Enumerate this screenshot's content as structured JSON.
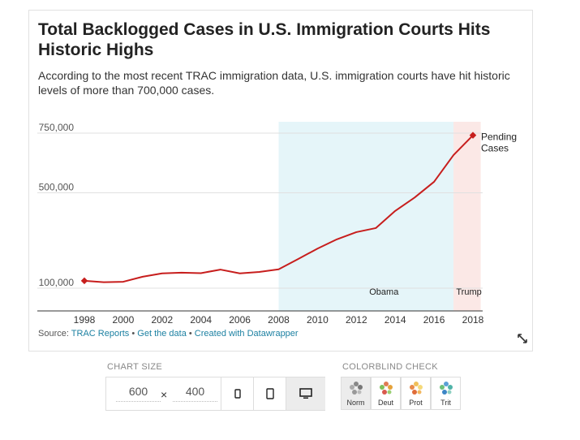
{
  "card": {
    "title": "Total Backlogged Cases in U.S. Immigration Courts Hits Historic Highs",
    "description": "According to the most recent TRAC immigration data, U.S. immigration courts have hit historic levels of more than 700,000 cases.",
    "source_prefix": "Source: ",
    "source_name": "TRAC Reports",
    "sep1": " • ",
    "get_data": "Get the data",
    "sep2": " • ",
    "created_with": "Created with Datawrapper"
  },
  "controls": {
    "chart_size_label": "CHART SIZE",
    "width": "600",
    "times": "×",
    "height": "400",
    "colorblind_label": "COLORBLIND CHECK",
    "colorblind_modes": [
      "Norm",
      "Deut",
      "Prot",
      "Trit"
    ]
  },
  "chart_data": {
    "type": "line",
    "title": "Total Backlogged Cases in U.S. Immigration Courts Hits Historic Highs",
    "x": [
      1998,
      1999,
      2000,
      2001,
      2002,
      2003,
      2004,
      2005,
      2006,
      2007,
      2008,
      2009,
      2010,
      2011,
      2012,
      2013,
      2014,
      2015,
      2016,
      2017,
      2018
    ],
    "series": [
      {
        "name": "Pending Cases",
        "color": "#c71e1d",
        "values": [
          131000,
          125000,
          127000,
          148000,
          162000,
          165000,
          163000,
          178000,
          162000,
          168000,
          179000,
          222000,
          266000,
          305000,
          335000,
          352000,
          424000,
          480000,
          546000,
          658000,
          741000
        ]
      }
    ],
    "xticks": [
      "1998",
      "2000",
      "2002",
      "2004",
      "2006",
      "2008",
      "2010",
      "2012",
      "2014",
      "2016",
      "2018"
    ],
    "yticks": [
      100000,
      500000,
      750000
    ],
    "ytick_labels": [
      "100,000",
      "500,000",
      "750,000"
    ],
    "xlim": [
      1998,
      2018
    ],
    "ylim": [
      100000,
      750000
    ],
    "grid": true,
    "ranges": [
      {
        "label": "Obama",
        "from": 2008,
        "to": 2017,
        "color": "#e5f5f9"
      },
      {
        "label": "Trump",
        "from": 2017,
        "to": 2018.4,
        "color": "#fbe8e6"
      }
    ],
    "end_label": [
      "Pending",
      "Cases"
    ]
  }
}
